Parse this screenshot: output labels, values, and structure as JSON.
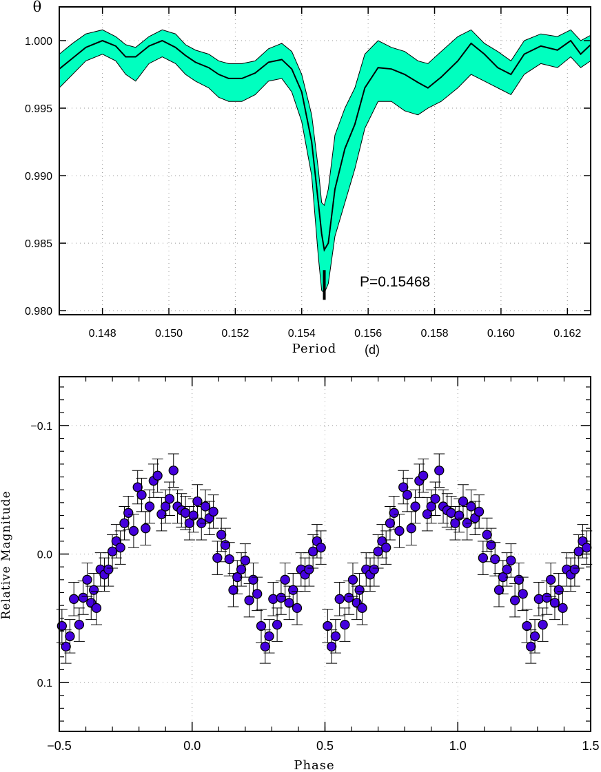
{
  "colors": {
    "band": "#00ffbf",
    "marker": "#4400dd",
    "axis": "#000000",
    "grid": "#999999"
  },
  "chart_data": [
    {
      "type": "line",
      "ylabel": "θ",
      "xlabel": "Period",
      "xunit": "(d)",
      "annotation": "P=0.15468",
      "marked_period": 0.15468,
      "xlim": [
        0.1467,
        0.1627
      ],
      "ylim": [
        0.9797,
        1.0025
      ],
      "xticks": [
        0.148,
        0.15,
        0.152,
        0.154,
        0.156,
        0.158,
        0.16,
        0.162
      ],
      "xtick_labels": [
        "0.148",
        "0.150",
        "0.152",
        "0.154",
        "0.156",
        "0.158",
        "0.160",
        "0.162"
      ],
      "yticks": [
        0.98,
        0.985,
        0.99,
        0.995,
        1.0
      ],
      "ytick_labels": [
        "0.980",
        "0.985",
        "0.990",
        "0.995",
        "1.000"
      ],
      "grid": true,
      "series": [
        {
          "x": [
            0.1467,
            0.1471,
            0.1475,
            0.148,
            0.1484,
            0.1487,
            0.149,
            0.1494,
            0.1498,
            0.1502,
            0.1505,
            0.1508,
            0.1512,
            0.1515,
            0.1518,
            0.1522,
            0.1526,
            0.153,
            0.1534,
            0.1537,
            0.154,
            0.1543,
            0.1545,
            0.1546,
            0.15468,
            0.1548,
            0.155,
            0.1553,
            0.1556,
            0.1559,
            0.1563,
            0.1567,
            0.1571,
            0.1575,
            0.1578,
            0.1582,
            0.1587,
            0.1591,
            0.1595,
            0.1599,
            0.1603,
            0.1607,
            0.1612,
            0.1617,
            0.1621,
            0.1624,
            0.1627
          ],
          "theta": [
            0.9979,
            0.9987,
            0.9995,
            1.0,
            0.9996,
            0.9988,
            0.9988,
            0.9996,
            1.0,
            0.9995,
            0.9989,
            0.9984,
            0.998,
            0.9975,
            0.9972,
            0.9972,
            0.9976,
            0.9984,
            0.9986,
            0.9979,
            0.9962,
            0.9925,
            0.988,
            0.9857,
            0.9845,
            0.985,
            0.989,
            0.992,
            0.9938,
            0.9965,
            0.998,
            0.9979,
            0.9975,
            0.9969,
            0.9965,
            0.9973,
            0.9985,
            0.9998,
            0.999,
            0.998,
            0.9975,
            0.999,
            0.9996,
            0.9993,
            1.0,
            0.999,
            0.9997
          ],
          "lower": [
            0.9965,
            0.9975,
            0.9985,
            0.999,
            0.9985,
            0.9975,
            0.997,
            0.9983,
            0.9988,
            0.9983,
            0.9975,
            0.997,
            0.9965,
            0.9958,
            0.9955,
            0.9955,
            0.996,
            0.997,
            0.9972,
            0.9962,
            0.994,
            0.99,
            0.984,
            0.9815,
            0.9813,
            0.982,
            0.9855,
            0.988,
            0.9905,
            0.9935,
            0.9955,
            0.9955,
            0.9948,
            0.9945,
            0.995,
            0.9955,
            0.9965,
            0.9975,
            0.997,
            0.9965,
            0.996,
            0.9975,
            0.9983,
            0.998,
            0.9988,
            0.998,
            0.9985
          ],
          "upper": [
            0.999,
            0.9998,
            1.0005,
            1.0008,
            1.0003,
            0.9997,
            0.9995,
            1.0003,
            1.0008,
            1.0005,
            0.9997,
            0.9993,
            0.999,
            0.9985,
            0.9983,
            0.9983,
            0.9985,
            0.9994,
            0.9998,
            0.9992,
            0.9975,
            0.9945,
            0.9905,
            0.988,
            0.9878,
            0.989,
            0.993,
            0.995,
            0.9965,
            0.999,
            1.0,
            0.9995,
            0.9992,
            0.9985,
            0.9983,
            0.9992,
            1.0003,
            1.0008,
            0.9998,
            0.9992,
            0.9985,
            1.0,
            1.0005,
            1.0003,
            1.0008,
            1.0,
            1.0004
          ]
        }
      ]
    },
    {
      "type": "scatter",
      "xlabel": "Phase",
      "ylabel": "Relative Magnitude",
      "xlim": [
        -0.5,
        1.5
      ],
      "ylim": [
        0.138,
        -0.138
      ],
      "y_inverted": true,
      "xticks": [
        -0.5,
        0.0,
        0.5,
        1.0,
        1.5
      ],
      "xtick_labels": [
        "−0.5",
        "0.0",
        "0.5",
        "1.0",
        "1.5"
      ],
      "yticks": [
        -0.1,
        0.0,
        0.1
      ],
      "ytick_labels": [
        "−0.1",
        "0.0",
        "0.1"
      ],
      "grid": true,
      "series": [
        {
          "phase": [
            -0.49,
            -0.475,
            -0.46,
            -0.445,
            -0.425,
            -0.41,
            -0.395,
            -0.38,
            -0.37,
            -0.36,
            -0.345,
            -0.33,
            -0.315,
            -0.3,
            -0.285,
            -0.27,
            -0.255,
            -0.24,
            -0.22,
            -0.205,
            -0.19,
            -0.175,
            -0.16,
            -0.145,
            -0.13,
            -0.115,
            -0.1,
            -0.085,
            -0.07,
            -0.055,
            -0.04,
            -0.025,
            -0.01,
            0.005,
            0.02,
            0.035,
            0.05,
            0.065,
            0.08,
            0.095,
            0.11,
            0.125,
            0.14,
            0.155,
            0.17,
            0.185,
            0.2,
            0.215,
            0.23,
            0.245,
            0.26,
            0.275,
            0.29,
            0.305,
            0.32,
            0.335,
            0.35,
            0.365,
            0.38,
            0.395,
            0.41,
            0.425,
            0.44,
            0.455,
            0.47,
            0.485
          ],
          "mag": [
            0.056,
            0.072,
            0.064,
            0.035,
            0.055,
            0.034,
            0.02,
            0.038,
            0.028,
            0.042,
            0.012,
            0.016,
            0.012,
            -0.002,
            -0.01,
            -0.005,
            -0.024,
            -0.032,
            -0.018,
            -0.052,
            -0.046,
            -0.02,
            -0.037,
            -0.057,
            -0.061,
            -0.031,
            -0.037,
            -0.043,
            -0.065,
            -0.037,
            -0.034,
            -0.032,
            -0.024,
            -0.03,
            -0.041,
            -0.024,
            -0.037,
            -0.028,
            -0.033,
            0.003,
            -0.015,
            -0.007,
            0.004,
            0.028,
            0.018,
            0.012,
            0.005,
            0.036,
            0.02,
            0.031,
            0.056,
            0.072,
            0.064,
            0.035,
            0.055,
            0.034,
            0.02,
            0.038,
            0.028,
            0.042,
            0.012,
            0.016,
            0.012,
            -0.002,
            -0.01,
            -0.005
          ],
          "err": 0.013
        }
      ]
    }
  ]
}
